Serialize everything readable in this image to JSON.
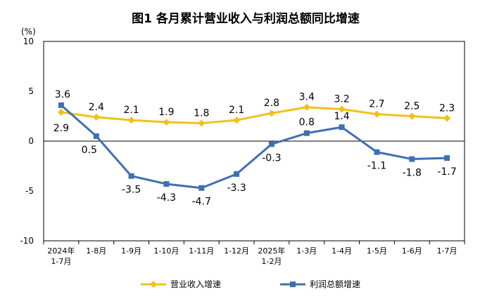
{
  "chart_data": {
    "type": "line",
    "title": "图1  各月累计营业收入与利润总额同比增速",
    "ylabel": "(%)",
    "xlabel": "",
    "ylim": [
      -10,
      10
    ],
    "yticks": [
      10,
      5,
      0,
      -5,
      -10
    ],
    "grid": false,
    "legend_position": "bottom",
    "categories": [
      [
        "2024年",
        "1-7月"
      ],
      [
        "1-8月"
      ],
      [
        "1-9月"
      ],
      [
        "1-10月"
      ],
      [
        "1-11月"
      ],
      [
        "1-12月"
      ],
      [
        "2025年",
        "1-2月"
      ],
      [
        "1-3月"
      ],
      [
        "1-4月"
      ],
      [
        "1-5月"
      ],
      [
        "1-6月"
      ],
      [
        "1-7月"
      ]
    ],
    "series": [
      {
        "name": "营业收入增速",
        "color": "#F2C01A",
        "marker": "diamond",
        "values": [
          2.9,
          2.4,
          2.1,
          1.9,
          1.8,
          2.1,
          2.8,
          3.4,
          3.2,
          2.7,
          2.5,
          2.3
        ],
        "labels": [
          "2.9",
          "2.4",
          "2.1",
          "1.9",
          "1.8",
          "2.1",
          "2.8",
          "3.4",
          "3.2",
          "2.7",
          "2.5",
          "2.3"
        ]
      },
      {
        "name": "利润总额增速",
        "color": "#3F6FB3",
        "marker": "square",
        "values": [
          3.6,
          0.5,
          -3.5,
          -4.3,
          -4.7,
          -3.3,
          -0.3,
          0.8,
          1.4,
          -1.1,
          -1.8,
          -1.7
        ],
        "labels": [
          "3.6",
          "0.5",
          "-3.5",
          "-4.3",
          "-4.7",
          "-3.3",
          "-0.3",
          "0.8",
          "1.4",
          "-1.1",
          "-1.8",
          "-1.7"
        ]
      }
    ]
  }
}
